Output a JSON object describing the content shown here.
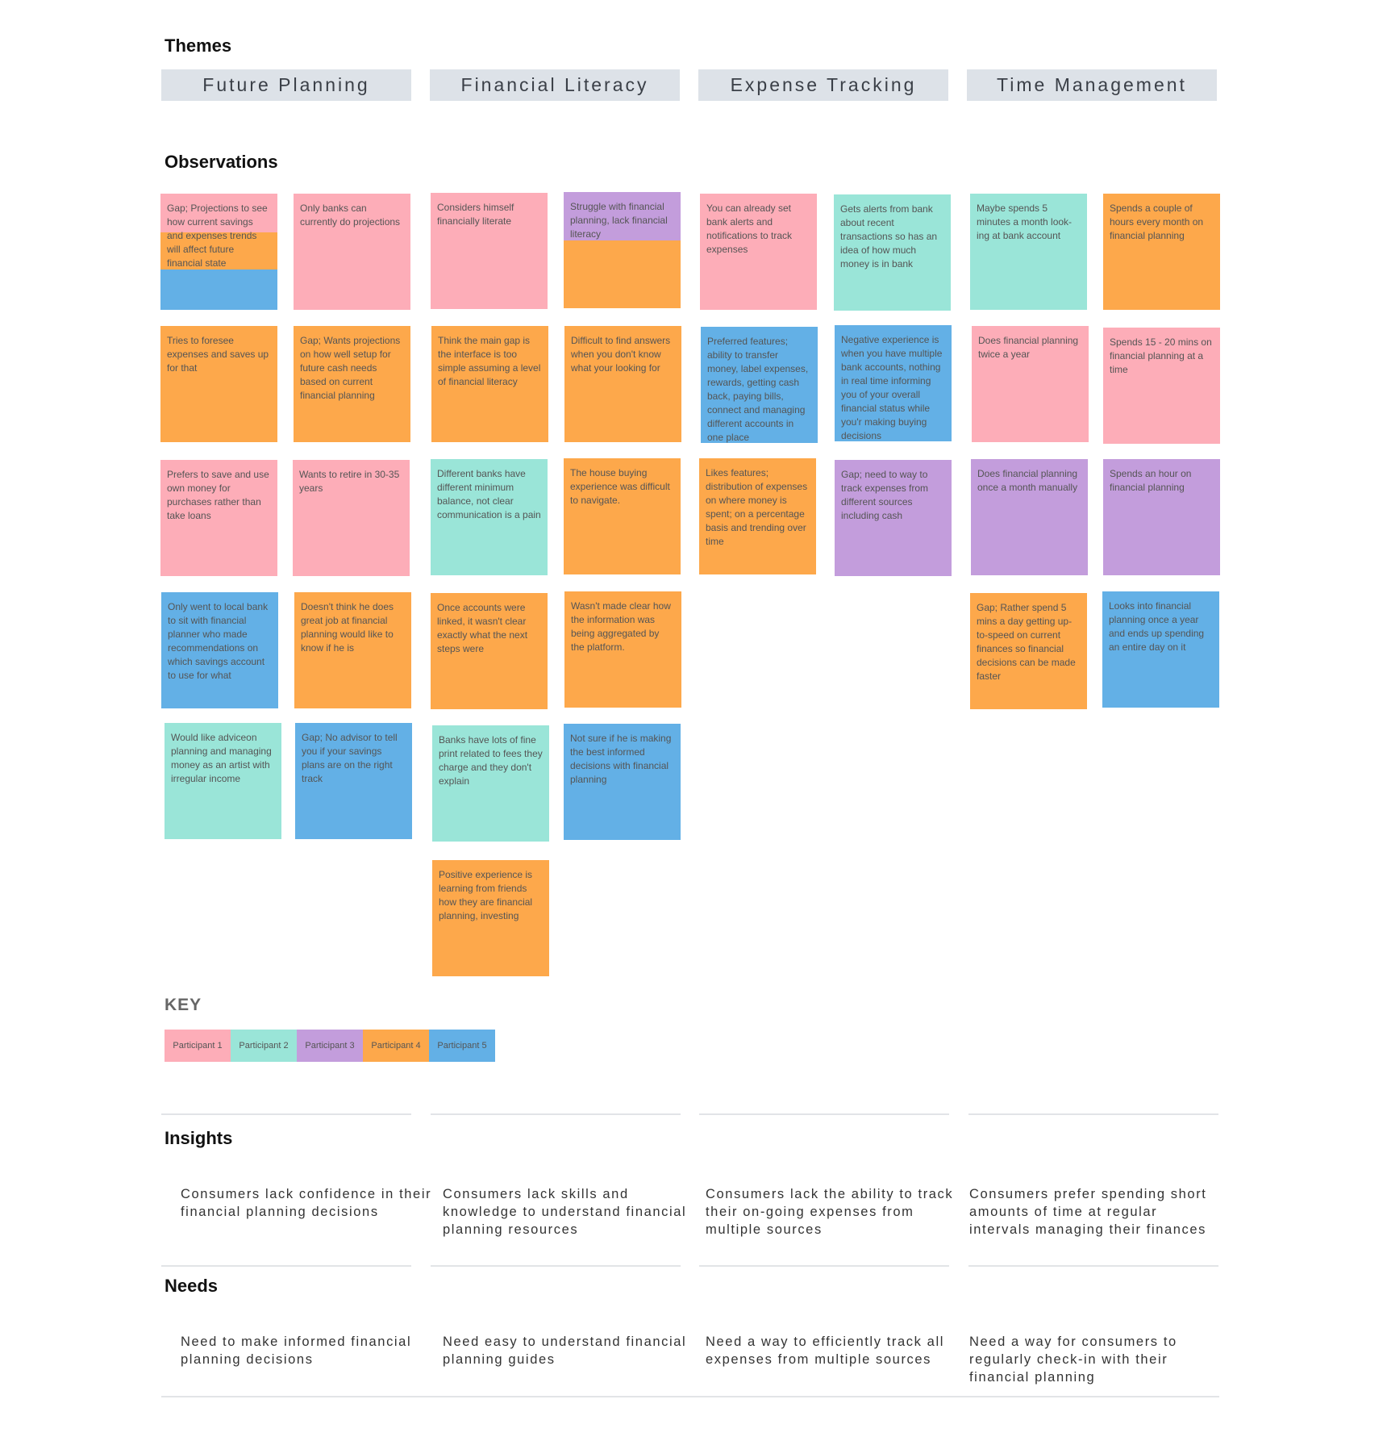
{
  "headings": {
    "themes": "Themes",
    "observations": "Observations",
    "key": "KEY",
    "insights": "Insights",
    "needs": "Needs"
  },
  "themes": [
    "Future Planning",
    "Financial Literacy",
    "Expense Tracking",
    "Time Management"
  ],
  "participant_colors": {
    "p1": "#fdadb8",
    "p2": "#9ae5d8",
    "p3": "#c39ddc",
    "p4": "#fda84b",
    "p5": "#63b0e6"
  },
  "observations": {
    "future_planning": [
      {
        "text": "Gap; Projections to see how current savings and expenses trends will affect future financial state",
        "participants": [
          "p1",
          "p4",
          "p5"
        ]
      },
      {
        "text": "Only banks can currently do projections",
        "participants": [
          "p1"
        ]
      },
      {
        "text": "Tries to foresee expenses and saves up for that",
        "participants": [
          "p4"
        ]
      },
      {
        "text": "Gap; Wants projections on how well setup for future cash needs based on current financial planning",
        "participants": [
          "p4"
        ]
      },
      {
        "text": "Prefers to save and use own money for purchases rather than take loans",
        "participants": [
          "p1"
        ]
      },
      {
        "text": "Wants to retire in 30-35 years",
        "participants": [
          "p1"
        ]
      },
      {
        "text": "Only went to local bank to sit with financial planner who made recommendations on which savings account to use for what",
        "participants": [
          "p5"
        ]
      },
      {
        "text": "Doesn't think he does great job at financial planning would like to know if he is",
        "participants": [
          "p4"
        ]
      },
      {
        "text": "Would like adviceon planning and managing money as an artist with irregular income",
        "participants": [
          "p2"
        ]
      },
      {
        "text": "Gap; No advisor to tell you if your savings plans are on the right track",
        "participants": [
          "p5"
        ]
      }
    ],
    "financial_literacy": [
      {
        "text": "Considers himself financially literate",
        "participants": [
          "p1"
        ]
      },
      {
        "text": "Struggle with financial planning, lack financial literacy",
        "participants": [
          "p3",
          "p4"
        ]
      },
      {
        "text": "Think the main gap is the interface is too simple assuming a level of financial literacy",
        "participants": [
          "p4"
        ]
      },
      {
        "text": "Difficult to find answers when you don't know what your looking for",
        "participants": [
          "p4"
        ]
      },
      {
        "text": "Different banks have different minimum balance, not clear communication is a pain",
        "participants": [
          "p2"
        ]
      },
      {
        "text": "The house buying experience was difficult to navigate.",
        "participants": [
          "p4"
        ]
      },
      {
        "text": "Once accounts were linked, it wasn't clear exactly what the next steps were",
        "participants": [
          "p4"
        ]
      },
      {
        "text": "Wasn't made clear how the information was being aggregated by the platform.",
        "participants": [
          "p4"
        ]
      },
      {
        "text": "Banks have lots of fine print related to fees they charge and they don't explain",
        "participants": [
          "p2"
        ]
      },
      {
        "text": "Not sure if he is making the best informed decisions with financial planning",
        "participants": [
          "p5"
        ]
      },
      {
        "text": "Positive experience is learning from friends how they are financial planning, investing",
        "participants": [
          "p4"
        ]
      }
    ],
    "expense_tracking": [
      {
        "text": "You can already set bank alerts and notifications to track expenses",
        "participants": [
          "p1"
        ]
      },
      {
        "text": "Gets alerts from bank about recent transactions so has an idea of how much money is in bank",
        "participants": [
          "p2"
        ]
      },
      {
        "text": "Preferred features; ability to transfer money, label expenses, rewards, getting cash back, paying bills, connect and managing different accounts in one place",
        "participants": [
          "p5"
        ]
      },
      {
        "text": "Negative experience is when you have multiple bank accounts, nothing in real time informing you of your overall financial status while you'r making buying decisions",
        "participants": [
          "p5"
        ]
      },
      {
        "text": "Likes features; distribution of expenses on where money is spent; on a percentage basis and trending over time",
        "participants": [
          "p4"
        ]
      },
      {
        "text": "Gap; need to way to track expenses from different sources including cash",
        "participants": [
          "p3"
        ]
      }
    ],
    "time_management": [
      {
        "text": "Maybe spends 5 minutes a month look-ing at bank account",
        "participants": [
          "p2"
        ]
      },
      {
        "text": "Spends a couple of hours every month on financial planning",
        "participants": [
          "p4"
        ]
      },
      {
        "text": "Does financial planning twice a year",
        "participants": [
          "p1"
        ]
      },
      {
        "text": "Spends 15 - 20 mins on financial planning at a time",
        "participants": [
          "p1"
        ]
      },
      {
        "text": "Does financial planning once a month manually",
        "participants": [
          "p3"
        ]
      },
      {
        "text": "Spends an hour on financial planning",
        "participants": [
          "p3"
        ]
      },
      {
        "text": "Gap; Rather spend 5 mins a day getting up-to-speed on current finances so financial decisions can be made faster",
        "participants": [
          "p4"
        ]
      },
      {
        "text": "Looks into financial planning once a year and ends up spending an entire day on it",
        "participants": [
          "p5"
        ]
      }
    ]
  },
  "key": [
    "Participant 1",
    "Participant 2",
    "Participant 3",
    "Participant 4",
    "Participant 5"
  ],
  "insights": [
    "Consumers lack confidence in their financial planning decisions",
    "Consumers lack skills and knowledge to understand financial planning resources",
    "Consumers lack the ability to track their on-going expenses from multiple sources",
    "Consumers prefer spending short amounts of time at regular intervals managing their finances"
  ],
  "needs": [
    "Need to make informed financial planning decisions",
    "Need easy to understand financial planning guides",
    "Need a way to efficiently track all expenses from multiple sources",
    "Need a way for consumers to regularly check-in with their financial planning"
  ]
}
